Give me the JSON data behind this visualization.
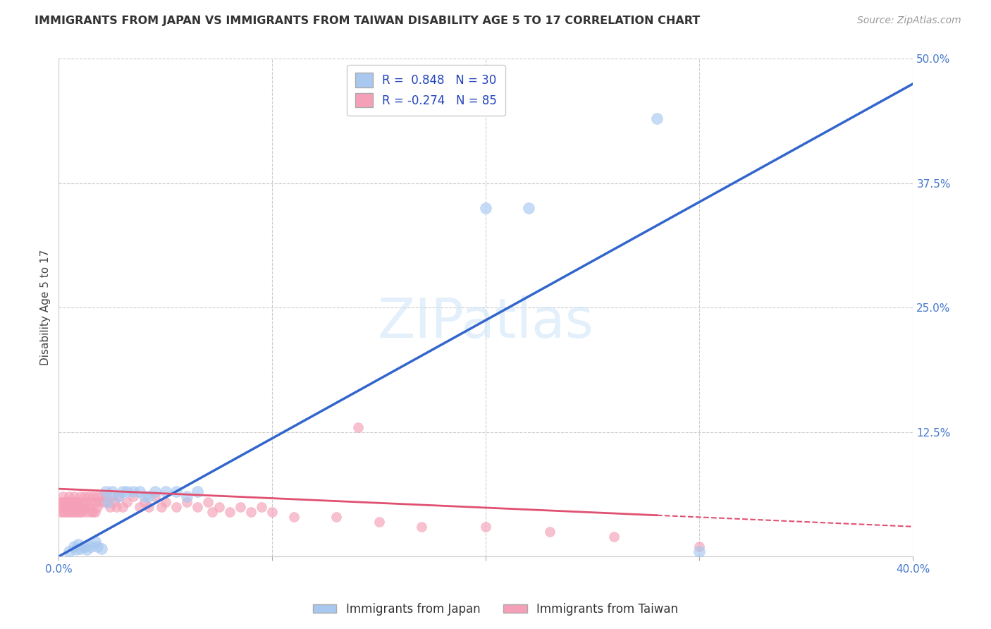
{
  "title": "IMMIGRANTS FROM JAPAN VS IMMIGRANTS FROM TAIWAN DISABILITY AGE 5 TO 17 CORRELATION CHART",
  "source": "Source: ZipAtlas.com",
  "ylabel": "Disability Age 5 to 17",
  "xlim": [
    0.0,
    0.4
  ],
  "ylim": [
    0.0,
    0.5
  ],
  "xticks": [
    0.0,
    0.1,
    0.2,
    0.3,
    0.4
  ],
  "yticks": [
    0.0,
    0.125,
    0.25,
    0.375,
    0.5
  ],
  "xticklabels": [
    "0.0%",
    "",
    "",
    "",
    "40.0%"
  ],
  "yticklabels": [
    "",
    "12.5%",
    "25.0%",
    "37.5%",
    "50.0%"
  ],
  "watermark": "ZIPatlas",
  "legend_japan_R": "0.848",
  "legend_japan_N": "30",
  "legend_taiwan_R": "-0.274",
  "legend_taiwan_N": "85",
  "japan_color": "#a8c8f0",
  "taiwan_color": "#f5a0b8",
  "japan_line_color": "#3366cc",
  "taiwan_line_color": "#e05070",
  "japan_scatter": {
    "x": [
      0.005,
      0.007,
      0.008,
      0.009,
      0.01,
      0.012,
      0.013,
      0.015,
      0.017,
      0.018,
      0.02,
      0.022,
      0.023,
      0.025,
      0.028,
      0.03,
      0.032,
      0.035,
      0.038,
      0.04,
      0.042,
      0.045,
      0.05,
      0.055,
      0.06,
      0.065,
      0.2,
      0.22,
      0.28,
      0.3
    ],
    "y": [
      0.005,
      0.01,
      0.007,
      0.012,
      0.008,
      0.01,
      0.007,
      0.01,
      0.015,
      0.01,
      0.008,
      0.065,
      0.055,
      0.065,
      0.06,
      0.065,
      0.065,
      0.065,
      0.065,
      0.06,
      0.06,
      0.065,
      0.065,
      0.065,
      0.06,
      0.065,
      0.35,
      0.35,
      0.44,
      0.005
    ]
  },
  "taiwan_scatter": {
    "x": [
      0.0,
      0.001,
      0.001,
      0.002,
      0.002,
      0.002,
      0.003,
      0.003,
      0.003,
      0.004,
      0.004,
      0.004,
      0.005,
      0.005,
      0.005,
      0.005,
      0.006,
      0.006,
      0.006,
      0.007,
      0.007,
      0.007,
      0.008,
      0.008,
      0.008,
      0.009,
      0.009,
      0.01,
      0.01,
      0.01,
      0.011,
      0.011,
      0.012,
      0.012,
      0.013,
      0.013,
      0.014,
      0.014,
      0.015,
      0.015,
      0.016,
      0.016,
      0.017,
      0.017,
      0.018,
      0.018,
      0.019,
      0.02,
      0.021,
      0.022,
      0.023,
      0.024,
      0.025,
      0.026,
      0.027,
      0.028,
      0.03,
      0.032,
      0.035,
      0.038,
      0.04,
      0.042,
      0.045,
      0.048,
      0.05,
      0.055,
      0.06,
      0.065,
      0.07,
      0.072,
      0.075,
      0.08,
      0.085,
      0.09,
      0.095,
      0.1,
      0.11,
      0.13,
      0.15,
      0.17,
      0.2,
      0.23,
      0.26,
      0.3,
      0.14
    ],
    "y": [
      0.05,
      0.055,
      0.045,
      0.055,
      0.045,
      0.06,
      0.055,
      0.045,
      0.05,
      0.055,
      0.045,
      0.05,
      0.06,
      0.055,
      0.045,
      0.05,
      0.055,
      0.045,
      0.05,
      0.055,
      0.045,
      0.06,
      0.055,
      0.045,
      0.05,
      0.055,
      0.045,
      0.06,
      0.05,
      0.045,
      0.055,
      0.045,
      0.06,
      0.05,
      0.055,
      0.045,
      0.05,
      0.06,
      0.055,
      0.045,
      0.06,
      0.045,
      0.055,
      0.045,
      0.06,
      0.05,
      0.055,
      0.06,
      0.055,
      0.06,
      0.055,
      0.05,
      0.06,
      0.055,
      0.05,
      0.06,
      0.05,
      0.055,
      0.06,
      0.05,
      0.055,
      0.05,
      0.06,
      0.05,
      0.055,
      0.05,
      0.055,
      0.05,
      0.055,
      0.045,
      0.05,
      0.045,
      0.05,
      0.045,
      0.05,
      0.045,
      0.04,
      0.04,
      0.035,
      0.03,
      0.03,
      0.025,
      0.02,
      0.01,
      0.13
    ]
  },
  "japan_line": {
    "x0": 0.0,
    "y0": 0.0,
    "x1": 0.4,
    "y1": 0.475
  },
  "taiwan_line": {
    "x0": 0.0,
    "y0": 0.068,
    "x1": 0.4,
    "y1": 0.03
  },
  "taiwan_line_solid_end": 0.28,
  "background_color": "#ffffff",
  "grid_color": "#cccccc"
}
